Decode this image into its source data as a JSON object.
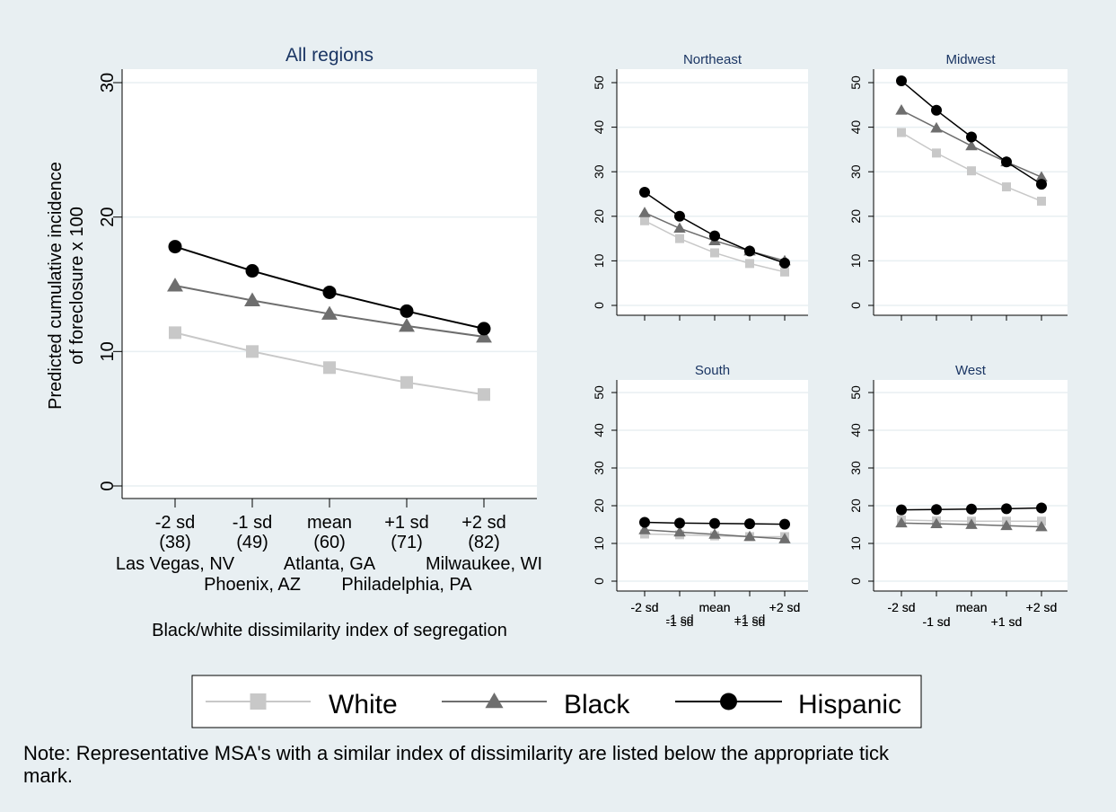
{
  "chart_data": [
    {
      "type": "line",
      "title": "All regions",
      "ylabel": "Predicted cumulative incidence of foreclosure x 100",
      "ylabel_lines": [
        "Predicted cumulative incidence",
        "of foreclosure x 100"
      ],
      "xlabel": "Black/white dissimilarity index of segregation",
      "ylim": [
        0,
        30
      ],
      "yticks": [
        0,
        10,
        20,
        30
      ],
      "categories": [
        "-2 sd",
        "-1 sd",
        "mean",
        "+1 sd",
        "+2 sd"
      ],
      "category_values": [
        "(38)",
        "(49)",
        "(60)",
        "(71)",
        "(82)"
      ],
      "msa_row1": [
        "Las Vegas, NV",
        "Atlanta, GA",
        "Milwaukee, WI"
      ],
      "msa_row2": [
        "Phoenix, AZ",
        "Philadelphia, PA"
      ],
      "grid": true,
      "series": [
        {
          "name": "White",
          "values": [
            11.4,
            10.0,
            8.8,
            7.7,
            6.8
          ]
        },
        {
          "name": "Black",
          "values": [
            14.9,
            13.8,
            12.8,
            11.9,
            11.1
          ]
        },
        {
          "name": "Hispanic",
          "values": [
            17.8,
            16.0,
            14.4,
            13.0,
            11.7
          ]
        }
      ]
    },
    {
      "type": "line",
      "title": "Northeast",
      "ylim": [
        0,
        50
      ],
      "yticks": [
        0,
        10,
        20,
        30,
        40,
        50
      ],
      "categories": [
        "-2 sd",
        "-1 sd",
        "mean",
        "+1 sd",
        "+2 sd"
      ],
      "grid": true,
      "series": [
        {
          "name": "White",
          "values": [
            19.0,
            15.0,
            11.8,
            9.4,
            7.5
          ]
        },
        {
          "name": "Black",
          "values": [
            20.8,
            17.3,
            14.5,
            12.2,
            10.0
          ]
        },
        {
          "name": "Hispanic",
          "values": [
            25.4,
            20.0,
            15.6,
            12.2,
            9.5
          ]
        }
      ]
    },
    {
      "type": "line",
      "title": "Midwest",
      "ylim": [
        0,
        50
      ],
      "yticks": [
        0,
        10,
        20,
        30,
        40,
        50
      ],
      "categories": [
        "-2 sd",
        "-1 sd",
        "mean",
        "+1 sd",
        "+2 sd"
      ],
      "grid": true,
      "series": [
        {
          "name": "White",
          "values": [
            38.8,
            34.2,
            30.2,
            26.6,
            23.4
          ]
        },
        {
          "name": "Black",
          "values": [
            43.8,
            39.8,
            35.8,
            32.2,
            28.8
          ]
        },
        {
          "name": "Hispanic",
          "values": [
            50.4,
            43.8,
            37.8,
            32.2,
            27.2
          ]
        }
      ]
    },
    {
      "type": "line",
      "title": "South",
      "ylim": [
        0,
        50
      ],
      "yticks": [
        0,
        10,
        20,
        30,
        40,
        50
      ],
      "categories": [
        "-2 sd",
        "-1 sd",
        "mean",
        "+1 sd",
        "+2 sd"
      ],
      "grid": true,
      "series": [
        {
          "name": "White",
          "values": [
            12.5,
            12.3,
            12.0,
            11.8,
            11.8
          ]
        },
        {
          "name": "Black",
          "values": [
            13.6,
            13.0,
            12.4,
            11.8,
            11.2
          ]
        },
        {
          "name": "Hispanic",
          "values": [
            15.6,
            15.4,
            15.3,
            15.2,
            15.1
          ]
        }
      ]
    },
    {
      "type": "line",
      "title": "West",
      "ylim": [
        0,
        50
      ],
      "yticks": [
        0,
        10,
        20,
        30,
        40,
        50
      ],
      "categories": [
        "-2 sd",
        "-1 sd",
        "mean",
        "+1 sd",
        "+2 sd"
      ],
      "grid": true,
      "series": [
        {
          "name": "White",
          "values": [
            16.2,
            16.0,
            15.9,
            15.9,
            15.9
          ]
        },
        {
          "name": "Black",
          "values": [
            15.4,
            15.2,
            15.0,
            14.7,
            14.4
          ]
        },
        {
          "name": "Hispanic",
          "values": [
            18.9,
            19.0,
            19.1,
            19.2,
            19.4
          ]
        }
      ]
    }
  ],
  "legend": {
    "placement": "bottom",
    "items": [
      {
        "label": "White",
        "marker": "square",
        "color": "#c8c8c8"
      },
      {
        "label": "Black",
        "marker": "triangle",
        "color": "#6e6e6e"
      },
      {
        "label": "Hispanic",
        "marker": "circle",
        "color": "#000000"
      }
    ]
  },
  "colors": {
    "background": "#e8eff2",
    "panel": "#ffffff",
    "grid": "#e8eff2",
    "title": "#1a3563"
  },
  "note": "Note: Representative MSA's with a similar index of dissimilarity are listed below the appropriate tick mark."
}
